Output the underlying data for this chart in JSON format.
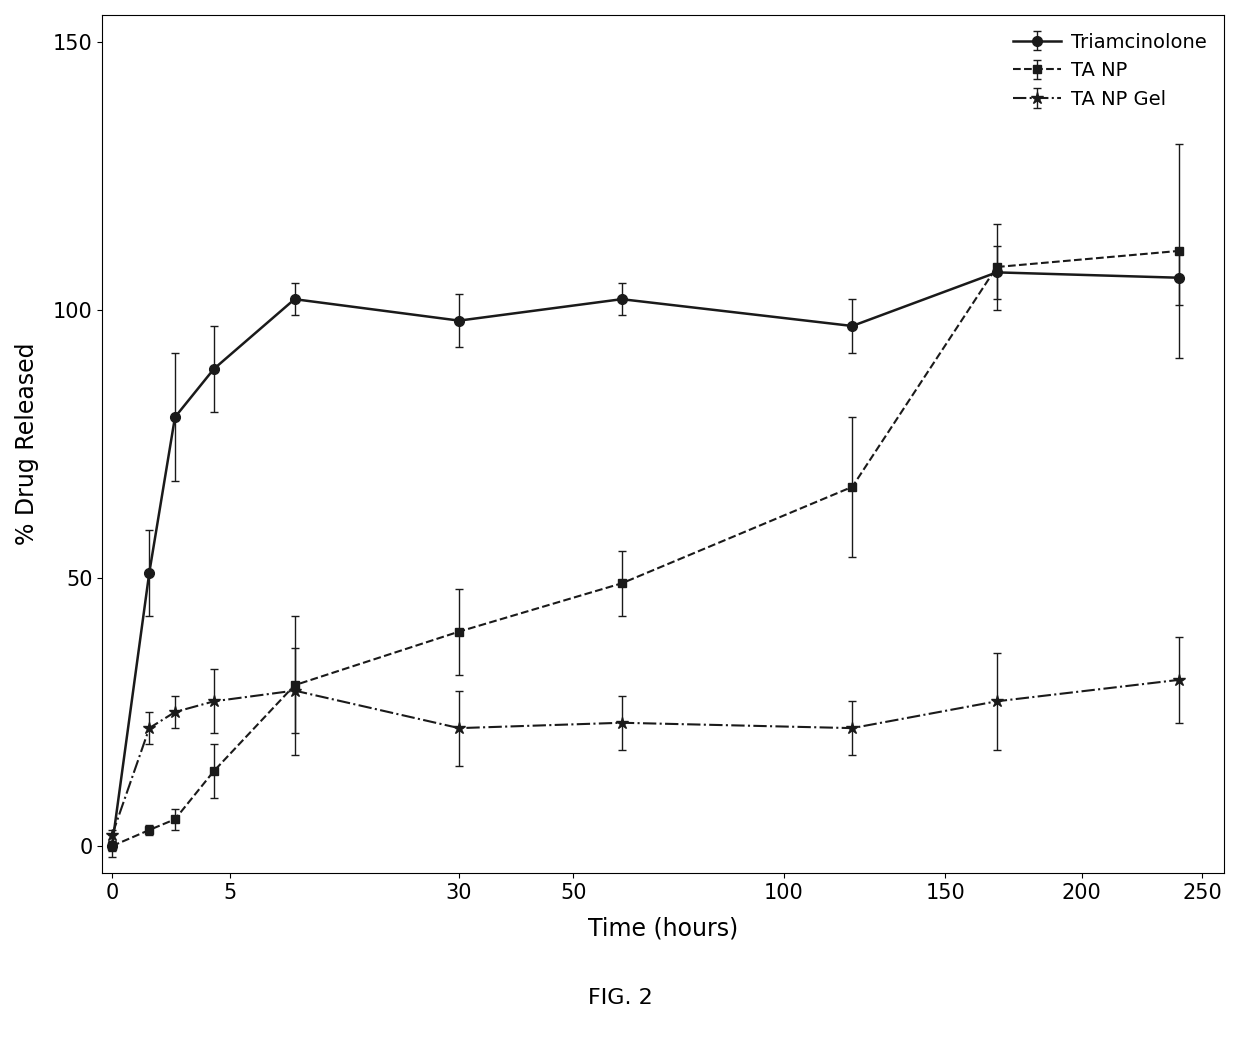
{
  "triamcinolone": {
    "x": [
      0,
      1,
      2,
      4,
      10,
      30,
      60,
      120,
      168,
      240
    ],
    "y": [
      0,
      51,
      80,
      89,
      102,
      98,
      102,
      97,
      107,
      106
    ],
    "yerr": [
      2,
      8,
      12,
      8,
      3,
      5,
      3,
      5,
      5,
      5
    ],
    "label": "Triamcinolone",
    "color": "#1a1a1a",
    "linestyle": "-",
    "marker": "o",
    "markersize": 7,
    "linewidth": 1.8
  },
  "ta_np": {
    "x": [
      0,
      1,
      2,
      4,
      10,
      30,
      60,
      120,
      168,
      240
    ],
    "y": [
      0,
      3,
      5,
      14,
      30,
      40,
      49,
      67,
      108,
      111
    ],
    "yerr": [
      1,
      1,
      2,
      5,
      13,
      8,
      6,
      13,
      8,
      20
    ],
    "label": "TA NP",
    "color": "#1a1a1a",
    "linestyle": "--",
    "marker": "s",
    "markersize": 6,
    "linewidth": 1.5
  },
  "ta_np_gel": {
    "x": [
      0,
      1,
      2,
      4,
      10,
      30,
      60,
      120,
      168,
      240
    ],
    "y": [
      2,
      22,
      25,
      27,
      29,
      22,
      23,
      22,
      27,
      31
    ],
    "yerr": [
      1,
      3,
      3,
      6,
      8,
      7,
      5,
      5,
      9,
      8
    ],
    "label": "TA NP Gel",
    "color": "#1a1a1a",
    "linestyle": "-.",
    "marker": "*",
    "markersize": 9,
    "linewidth": 1.5
  },
  "xlabel": "Time (hours)",
  "ylabel": "% Drug Released",
  "ylim": [
    -5,
    155
  ],
  "yticks": [
    0,
    50,
    100,
    150
  ],
  "fig_label": "FIG. 2",
  "background_color": "#ffffff",
  "xtick_positions": [
    0,
    5,
    30,
    50,
    100,
    150,
    200,
    250
  ],
  "xtick_labels": [
    "0",
    "5",
    "30",
    "50",
    "100",
    "150",
    "200",
    "250"
  ]
}
